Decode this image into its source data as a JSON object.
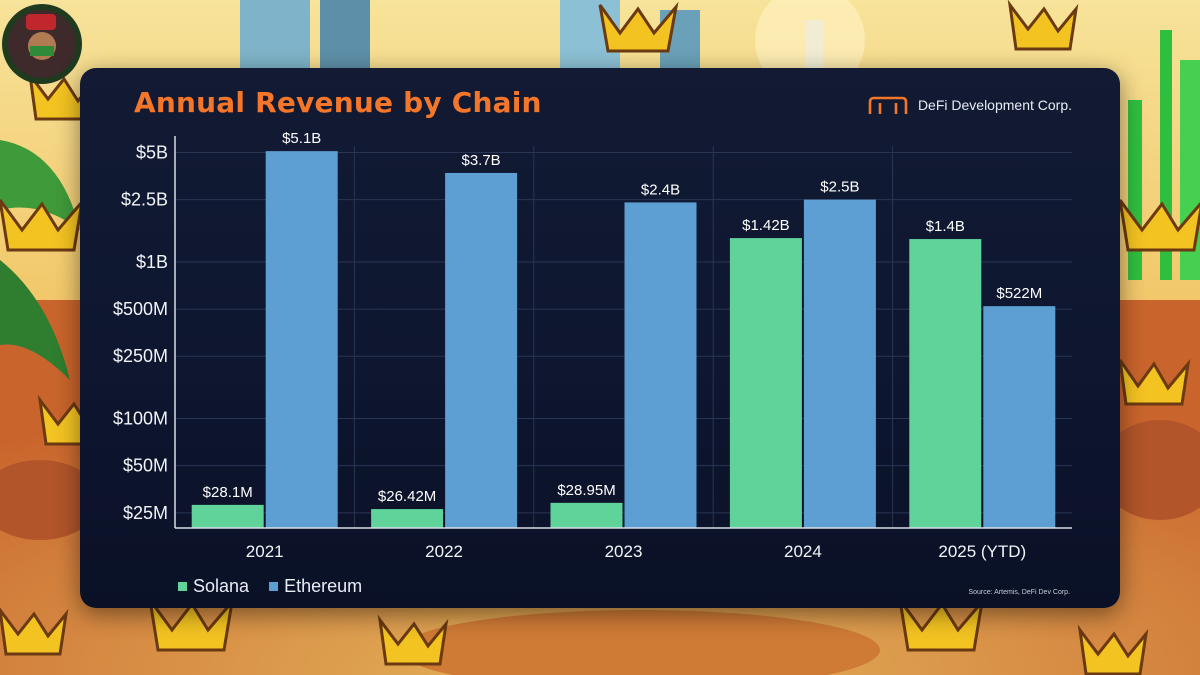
{
  "brand": {
    "name": "DeFi Development Corp."
  },
  "source": "Source: Artemis, DeFi Dev Corp.",
  "colors": {
    "solana": "#5fd39a",
    "ethereum": "#5d9fd3",
    "title": "#f4762a",
    "card": "#0e1630"
  },
  "chart_data": {
    "type": "bar",
    "title": "Annual Revenue by Chain",
    "xlabel": "",
    "ylabel": "",
    "yscale": "log",
    "ylim": [
      20000000,
      5500000000
    ],
    "grid": true,
    "legend_position": "bottom-left",
    "yticks": [
      25000000,
      50000000,
      100000000,
      250000000,
      500000000,
      1000000000,
      2500000000,
      5000000000
    ],
    "ytick_labels": [
      "$25M",
      "$50M",
      "$100M",
      "$250M",
      "$500M",
      "$1B",
      "$2.5B",
      "$5B"
    ],
    "categories": [
      "2021",
      "2022",
      "2023",
      "2024",
      "2025 (YTD)"
    ],
    "series": [
      {
        "name": "Solana",
        "values": [
          28100000,
          26420000,
          28950000,
          1420000000,
          1400000000
        ],
        "labels": [
          "$28.1M",
          "$26.42M",
          "$28.95M",
          "$1.42B",
          "$1.4B"
        ]
      },
      {
        "name": "Ethereum",
        "values": [
          5100000000,
          3700000000,
          2400000000,
          2500000000,
          522000000
        ],
        "labels": [
          "$5.1B",
          "$3.7B",
          "$2.4B",
          "$2.5B",
          "$522M"
        ]
      }
    ]
  }
}
